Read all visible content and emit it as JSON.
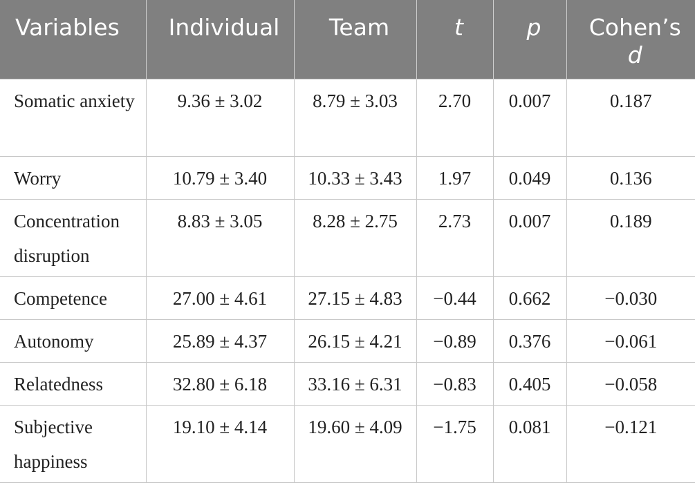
{
  "header": {
    "variables": "Variables",
    "individual": "Individual",
    "team": "Team",
    "t": "t",
    "p": "p",
    "cohens_prefix": "Cohen’s",
    "cohens_d": "d"
  },
  "rows": [
    {
      "variable": "Somatic anxiety",
      "individual": "9.36 ± 3.02",
      "team": "8.79 ± 3.03",
      "t": "2.70",
      "p": "0.007",
      "d": "0.187"
    },
    {
      "variable": "Worry",
      "individual": "10.79 ± 3.40",
      "team": "10.33 ± 3.43",
      "t": "1.97",
      "p": "0.049",
      "d": "0.136"
    },
    {
      "variable": "Concentration disruption",
      "individual": "8.83 ± 3.05",
      "team": "8.28 ± 2.75",
      "t": "2.73",
      "p": "0.007",
      "d": "0.189"
    },
    {
      "variable": "Competence",
      "individual": "27.00 ± 4.61",
      "team": "27.15 ± 4.83",
      "t": "−0.44",
      "p": "0.662",
      "d": "−0.030"
    },
    {
      "variable": "Autonomy",
      "individual": "25.89 ± 4.37",
      "team": "26.15 ± 4.21",
      "t": "−0.89",
      "p": "0.376",
      "d": "−0.061"
    },
    {
      "variable": "Relatedness",
      "individual": "32.80 ± 6.18",
      "team": "33.16 ± 6.31",
      "t": "−0.83",
      "p": "0.405",
      "d": "−0.058"
    },
    {
      "variable": "Subjective happiness",
      "individual": "19.10 ± 4.14",
      "team": "19.60 ± 4.09",
      "t": "−1.75",
      "p": "0.081",
      "d": "−0.121"
    }
  ]
}
